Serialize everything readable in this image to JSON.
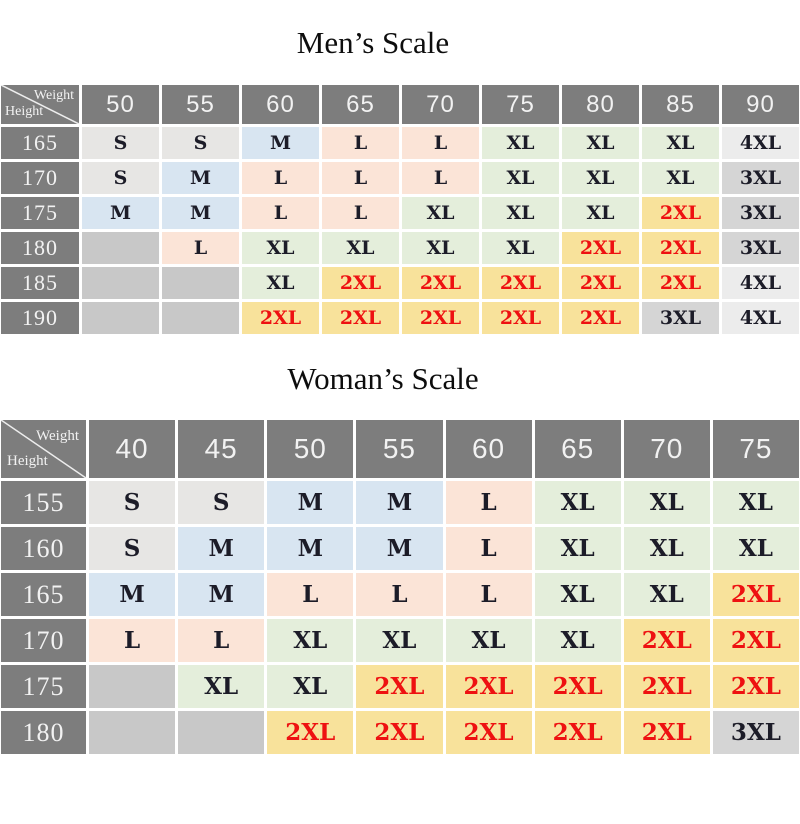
{
  "colors": {
    "header_bg": "#7d7d7d",
    "header_text": "#f2f2f2",
    "cell_text": "#1c1c28",
    "accent_red": "#ee1111",
    "empty_cell_bg": "#c8c8c8",
    "size_backgrounds": {
      "S": "#e7e6e4",
      "M": "#d8e5f1",
      "L": "#fbe4d7",
      "XL": "#e4eedb",
      "2XL": "#f8e29b",
      "3XL": "#d5d5d5",
      "4XL": "#ececec"
    }
  },
  "chart_data": [
    {
      "type": "table",
      "title": "Men’s Scale",
      "corner": {
        "top_right": "Weight",
        "bottom_left": "Height"
      },
      "columns": [
        "50",
        "55",
        "60",
        "65",
        "70",
        "75",
        "80",
        "85",
        "90"
      ],
      "rows": [
        {
          "height": "165",
          "sizes": [
            "S",
            "S",
            "M",
            "L",
            "L",
            "XL",
            "XL",
            "XL",
            "4XL"
          ]
        },
        {
          "height": "170",
          "sizes": [
            "S",
            "M",
            "L",
            "L",
            "L",
            "XL",
            "XL",
            "XL",
            "3XL"
          ]
        },
        {
          "height": "175",
          "sizes": [
            "M",
            "M",
            "L",
            "L",
            "XL",
            "XL",
            "XL",
            "2XL",
            "3XL"
          ]
        },
        {
          "height": "180",
          "sizes": [
            "",
            "L",
            "XL",
            "XL",
            "XL",
            "XL",
            "2XL",
            "2XL",
            "3XL"
          ]
        },
        {
          "height": "185",
          "sizes": [
            "",
            "",
            "XL",
            "2XL",
            "2XL",
            "2XL",
            "2XL",
            "2XL",
            "4XL"
          ]
        },
        {
          "height": "190",
          "sizes": [
            "",
            "",
            "2XL",
            "2XL",
            "2XL",
            "2XL",
            "2XL",
            "3XL",
            "4XL"
          ]
        }
      ]
    },
    {
      "type": "table",
      "title": "Woman’s Scale",
      "corner": {
        "top_right": "Weight",
        "bottom_left": "Height"
      },
      "columns": [
        "40",
        "45",
        "50",
        "55",
        "60",
        "65",
        "70",
        "75"
      ],
      "rows": [
        {
          "height": "155",
          "sizes": [
            "S",
            "S",
            "M",
            "M",
            "L",
            "XL",
            "XL",
            "XL"
          ]
        },
        {
          "height": "160",
          "sizes": [
            "S",
            "M",
            "M",
            "M",
            "L",
            "XL",
            "XL",
            "XL"
          ]
        },
        {
          "height": "165",
          "sizes": [
            "M",
            "M",
            "L",
            "L",
            "L",
            "XL",
            "XL",
            "2XL"
          ]
        },
        {
          "height": "170",
          "sizes": [
            "L",
            "L",
            "XL",
            "XL",
            "XL",
            "XL",
            "2XL",
            "2XL"
          ]
        },
        {
          "height": "175",
          "sizes": [
            "",
            "XL",
            "XL",
            "2XL",
            "2XL",
            "2XL",
            "2XL",
            "2XL"
          ]
        },
        {
          "height": "180",
          "sizes": [
            "",
            "",
            "2XL",
            "2XL",
            "2XL",
            "2XL",
            "2XL",
            "3XL"
          ]
        }
      ]
    }
  ]
}
